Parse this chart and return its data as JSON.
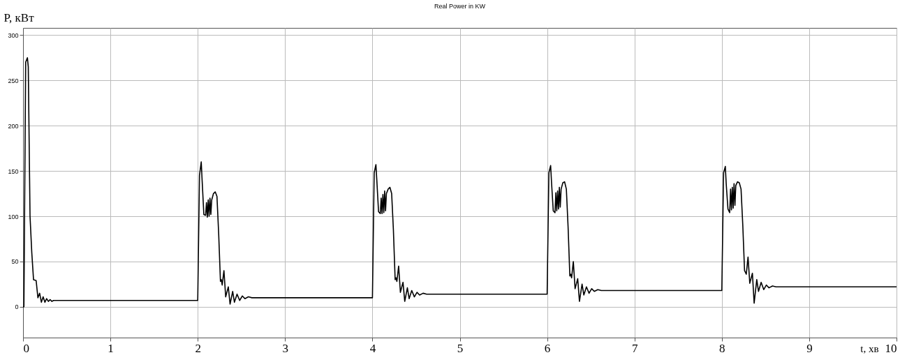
{
  "chart_data": {
    "type": "line",
    "title": "Real Power in KW",
    "xlabel": "t, хв",
    "ylabel": "P, кВт",
    "x": [
      0,
      0.01,
      0.03,
      0.05,
      0.06,
      0.08,
      0.1,
      0.12,
      0.15,
      0.17,
      0.19,
      0.21,
      0.23,
      0.25,
      0.27,
      0.29,
      0.31,
      0.33,
      0.35,
      2.0,
      2.02,
      2.04,
      2.05,
      2.07,
      2.09,
      2.1,
      2.11,
      2.12,
      2.13,
      2.14,
      2.15,
      2.16,
      2.18,
      2.2,
      2.22,
      2.24,
      2.26,
      2.27,
      2.28,
      2.3,
      2.32,
      2.35,
      2.37,
      2.4,
      2.42,
      2.45,
      2.48,
      2.51,
      2.54,
      2.58,
      2.62,
      2.7,
      4.0,
      4.02,
      4.04,
      4.05,
      4.07,
      4.09,
      4.1,
      4.11,
      4.12,
      4.13,
      4.14,
      4.15,
      4.16,
      4.18,
      4.2,
      4.22,
      4.24,
      4.26,
      4.27,
      4.28,
      4.3,
      4.32,
      4.35,
      4.37,
      4.4,
      4.42,
      4.45,
      4.48,
      4.51,
      4.54,
      4.58,
      4.62,
      4.7,
      6.0,
      6.02,
      6.04,
      6.05,
      6.07,
      6.09,
      6.1,
      6.11,
      6.12,
      6.13,
      6.14,
      6.15,
      6.16,
      6.18,
      6.2,
      6.22,
      6.24,
      6.26,
      6.27,
      6.28,
      6.3,
      6.32,
      6.35,
      6.37,
      6.4,
      6.42,
      6.45,
      6.48,
      6.51,
      6.54,
      6.58,
      6.62,
      6.7,
      8.0,
      8.02,
      8.04,
      8.05,
      8.07,
      8.09,
      8.1,
      8.11,
      8.12,
      8.13,
      8.14,
      8.15,
      8.16,
      8.18,
      8.2,
      8.22,
      8.24,
      8.26,
      8.27,
      8.28,
      8.3,
      8.32,
      8.35,
      8.37,
      8.4,
      8.42,
      8.45,
      8.48,
      8.51,
      8.54,
      8.58,
      8.62,
      8.8,
      10.0
    ],
    "series": [
      {
        "color": "#000000",
        "values": [
          0,
          0,
          270,
          275,
          265,
          100,
          60,
          30,
          29,
          10,
          15,
          5,
          11,
          5,
          9,
          6,
          8,
          6,
          7,
          7,
          145,
          160,
          140,
          102,
          101,
          115,
          99,
          118,
          100,
          120,
          102,
          118,
          125,
          127,
          122,
          80,
          28,
          30,
          24,
          40,
          11,
          22,
          3,
          17,
          5,
          14,
          7,
          12,
          9,
          11,
          10,
          10,
          10,
          148,
          157,
          140,
          105,
          103,
          120,
          103,
          124,
          104,
          128,
          106,
          125,
          130,
          132,
          125,
          85,
          30,
          32,
          28,
          45,
          16,
          27,
          6,
          21,
          9,
          18,
          11,
          16,
          13,
          15,
          14,
          14,
          14,
          148,
          156,
          138,
          106,
          104,
          126,
          106,
          128,
          108,
          132,
          110,
          130,
          137,
          138,
          130,
          88,
          34,
          36,
          32,
          50,
          20,
          31,
          6,
          25,
          13,
          22,
          15,
          20,
          17,
          19,
          18,
          18,
          18,
          148,
          155,
          136,
          108,
          104,
          130,
          107,
          132,
          109,
          136,
          112,
          134,
          138,
          137,
          130,
          90,
          40,
          38,
          36,
          55,
          26,
          37,
          4,
          30,
          17,
          27,
          19,
          24,
          21,
          23,
          22,
          22,
          22
        ]
      }
    ],
    "xlim": [
      0,
      10
    ],
    "xticks": [
      0,
      1,
      2,
      3,
      4,
      5,
      6,
      7,
      8,
      9,
      10
    ],
    "ylim": [
      -34,
      308
    ],
    "yticks": [
      0,
      50,
      100,
      150,
      200,
      250,
      300
    ],
    "grid": true,
    "legend": false
  }
}
